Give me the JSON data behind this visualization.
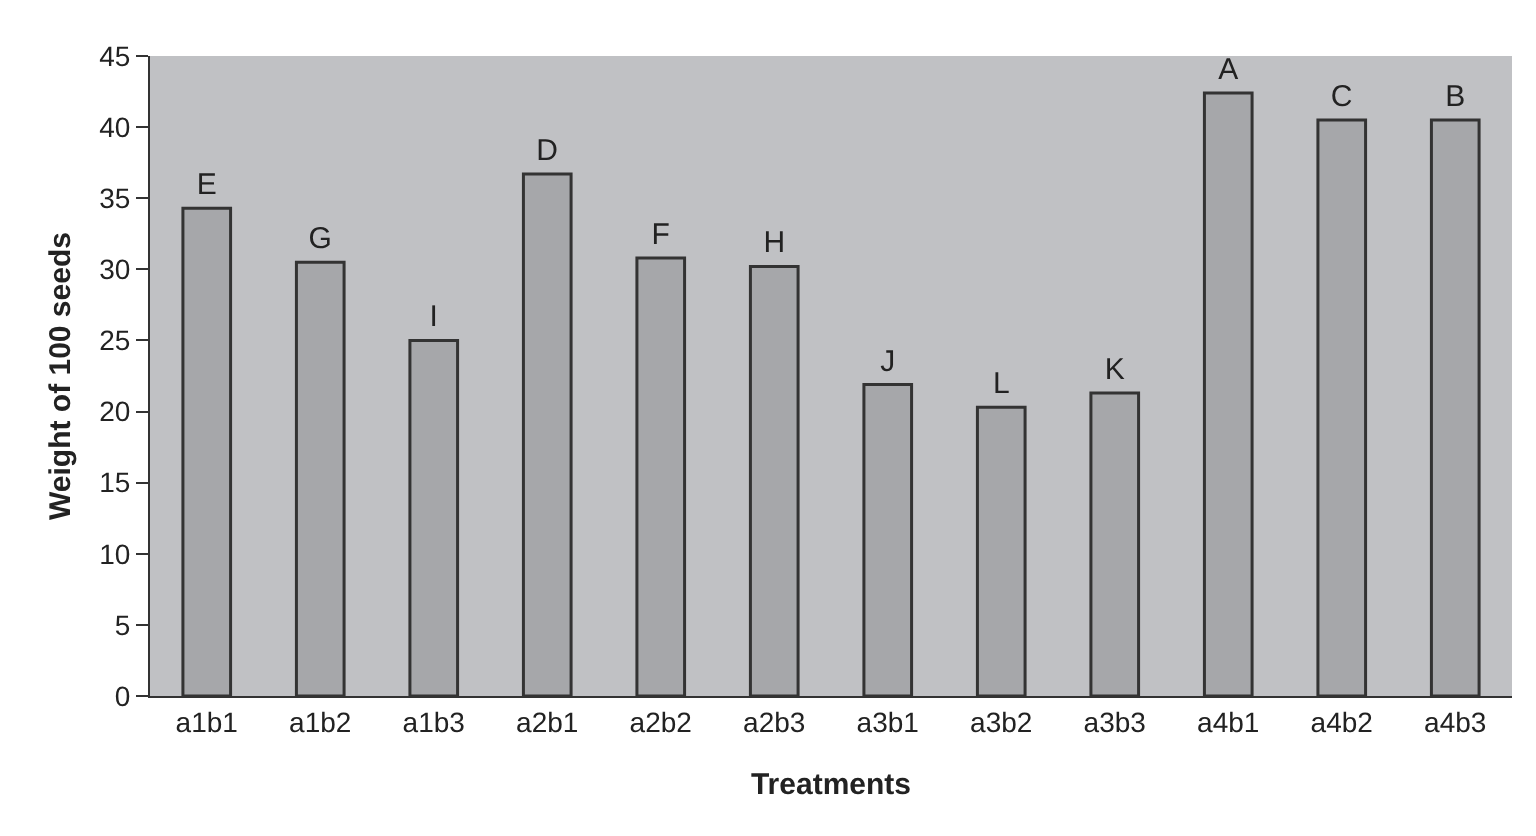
{
  "chart_data": {
    "type": "bar",
    "xlabel": "Treatments",
    "ylabel": "Weight of 100 seeds",
    "categories": [
      "a1b1",
      "a1b2",
      "a1b3",
      "a2b1",
      "a2b2",
      "a2b3",
      "a3b1",
      "a3b2",
      "a3b3",
      "a4b1",
      "a4b2",
      "a4b3"
    ],
    "values": [
      34.3,
      30.5,
      25.0,
      36.7,
      30.8,
      30.2,
      21.9,
      20.3,
      21.3,
      42.4,
      40.5,
      40.5
    ],
    "value_labels": [
      "E",
      "G",
      "I",
      "D",
      "F",
      "H",
      "J",
      "L",
      "K",
      "A",
      "C",
      "B"
    ],
    "color": "#a6a7aa",
    "ylim": [
      0,
      45
    ],
    "yticks": [
      0,
      5,
      10,
      15,
      20,
      25,
      30,
      35,
      40,
      45
    ],
    "grid": false
  }
}
